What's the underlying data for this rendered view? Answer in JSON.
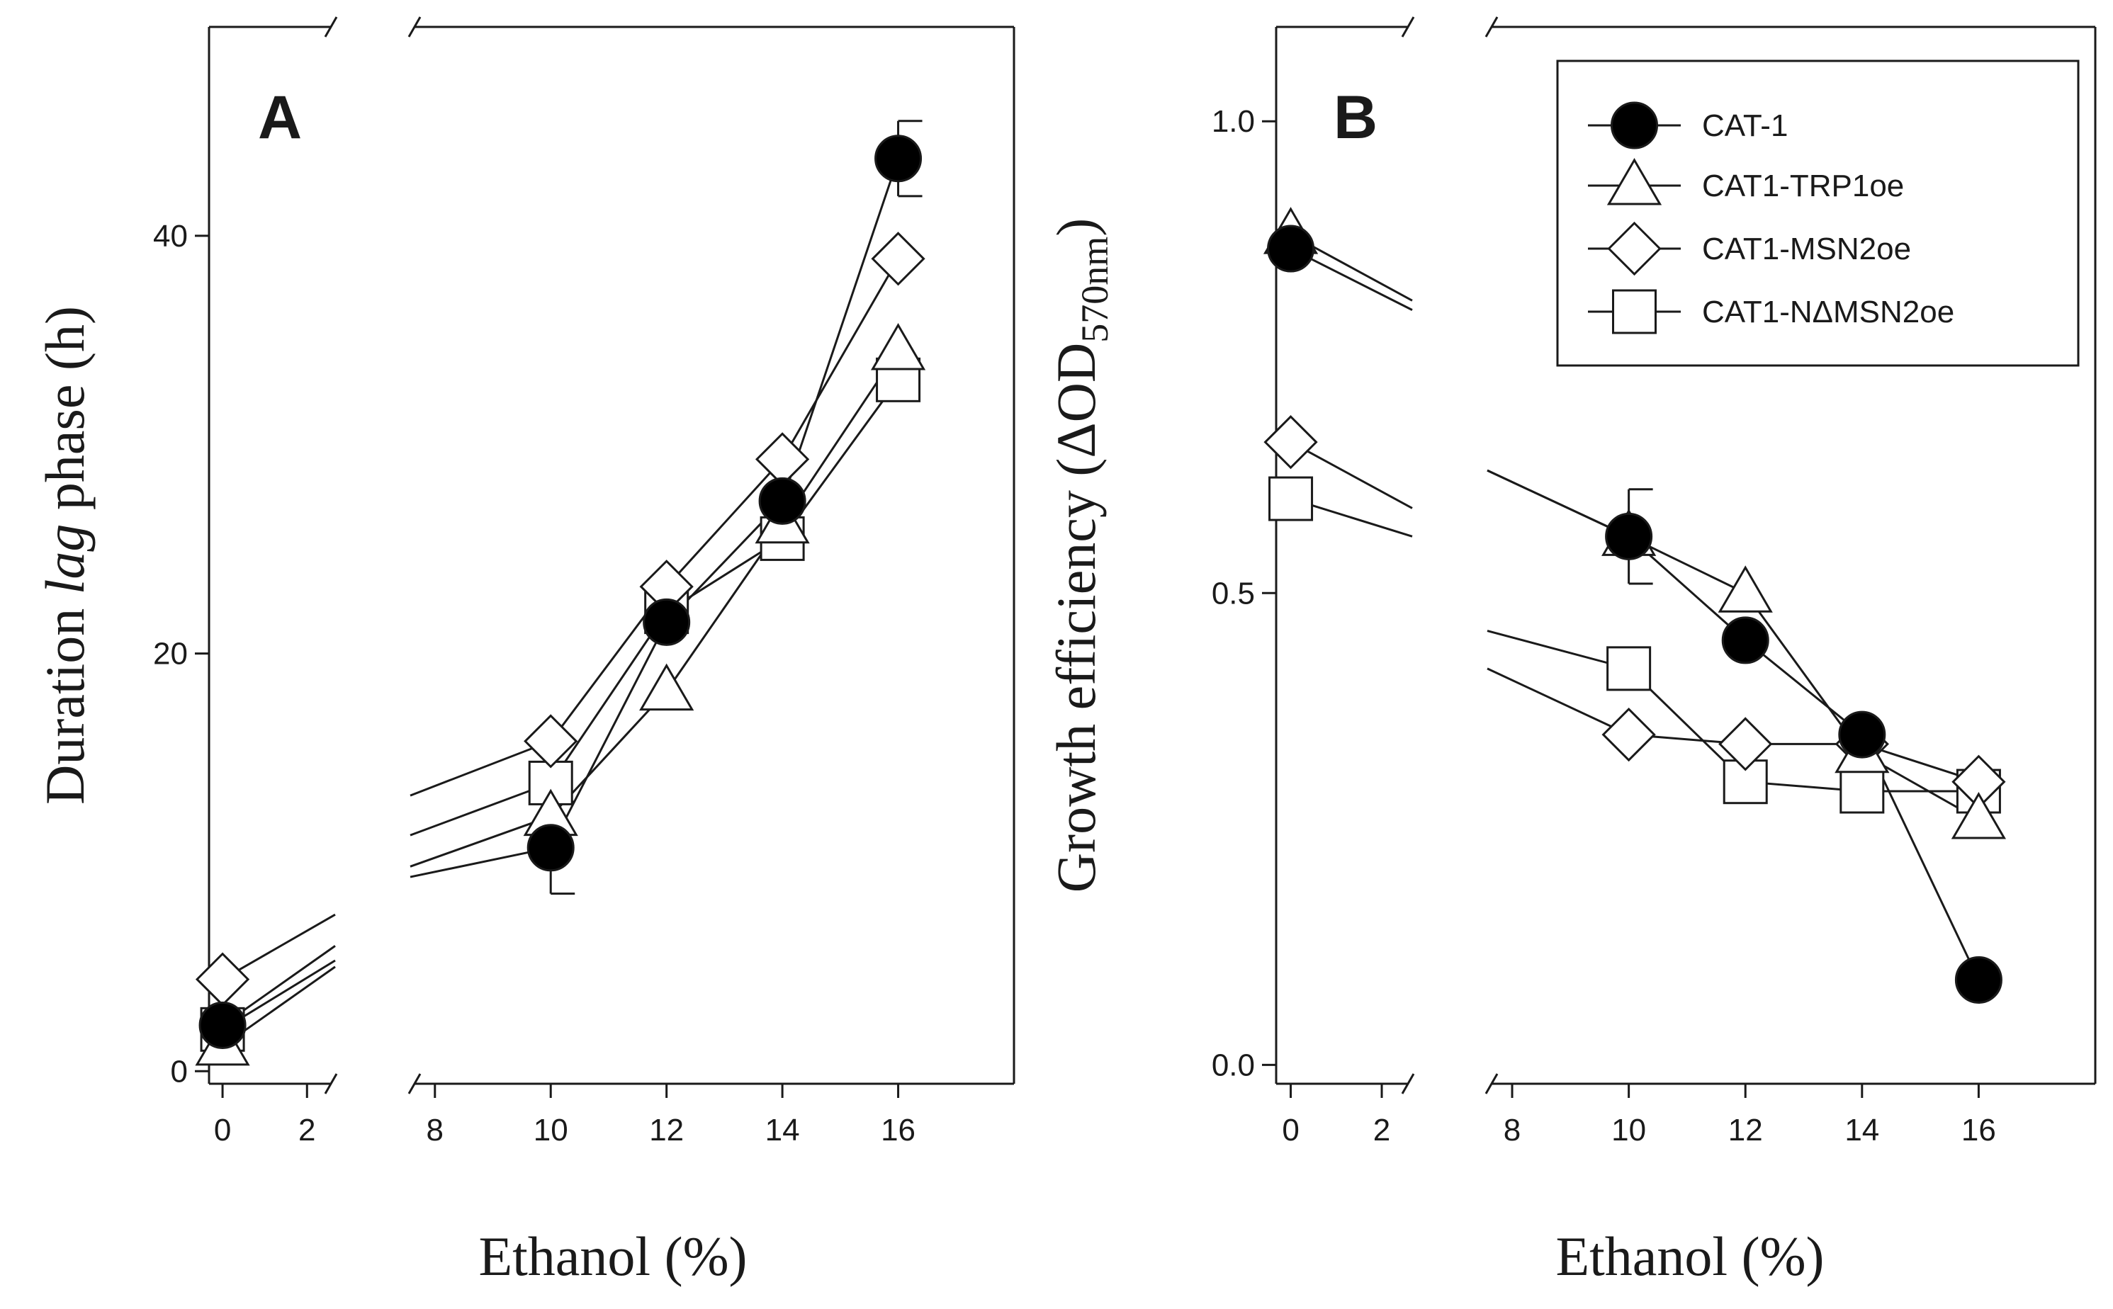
{
  "chart_data": [
    {
      "type": "line",
      "panel_label": "A",
      "title": "",
      "xlabel": "Ethanol (%)",
      "ylabel": {
        "prefix": "Duration ",
        "italic": "lag",
        "suffix": " phase (h)"
      },
      "xlim": [
        0,
        18
      ],
      "x_break": [
        2.3,
        7.6
      ],
      "ylim": [
        -0.6,
        50
      ],
      "xticks": [
        {
          "v": 0,
          "label": "0"
        },
        {
          "v": 2,
          "label": "2"
        },
        {
          "v": 8,
          "label": "8"
        },
        {
          "v": 10,
          "label": "10"
        },
        {
          "v": 12,
          "label": "12"
        },
        {
          "v": 14,
          "label": "14"
        },
        {
          "v": 16,
          "label": "16"
        }
      ],
      "yticks": [
        {
          "v": 0,
          "label": "0"
        },
        {
          "v": 20,
          "label": "20"
        },
        {
          "v": 40,
          "label": "40"
        }
      ],
      "series": [
        {
          "name": "CAT-1",
          "marker": "circle",
          "x": [
            0,
            10,
            12,
            14,
            16
          ],
          "y": [
            2.2,
            10.7,
            21.5,
            27.3,
            43.7
          ],
          "err": [
            null,
            2.2,
            null,
            null,
            1.8
          ],
          "lead_from": [
            6.0,
            9.3
          ]
        },
        {
          "name": "CAT1-TRP1oe",
          "marker": "triangle",
          "x": [
            0,
            10,
            12,
            14,
            16
          ],
          "y": [
            1.2,
            12.2,
            18.2,
            26.2,
            34.5
          ],
          "err": [
            null,
            null,
            null,
            null,
            null
          ],
          "lead_from": [
            5.0,
            9.8
          ]
        },
        {
          "name": "CAT1-MSN2oe",
          "marker": "diamond",
          "x": [
            0,
            10,
            12,
            14,
            16
          ],
          "y": [
            4.4,
            15.8,
            23.2,
            29.3,
            38.9
          ],
          "err": [
            null,
            null,
            null,
            null,
            null
          ],
          "lead_from": [
            7.5,
            13.2
          ]
        },
        {
          "name": "CAT1-NΔMSN2oe",
          "marker": "square",
          "x": [
            0,
            10,
            12,
            14,
            16
          ],
          "y": [
            2.0,
            13.8,
            22.0,
            25.5,
            33.1
          ],
          "err": [
            null,
            null,
            null,
            null,
            null
          ],
          "lead_from": [
            5.3,
            11.3
          ]
        }
      ],
      "legend": null
    },
    {
      "type": "line",
      "panel_label": "B",
      "title": "",
      "xlabel": "Ethanol (%)",
      "ylabel": {
        "prefix": "Growth efficiency (ΔOD",
        "subscript": "570nm",
        "suffix": ")"
      },
      "xlim": [
        0,
        18
      ],
      "x_break": [
        2.3,
        7.6
      ],
      "ylim": [
        -0.02,
        1.1
      ],
      "xticks": [
        {
          "v": 0,
          "label": "0"
        },
        {
          "v": 2,
          "label": "2"
        },
        {
          "v": 8,
          "label": "8"
        },
        {
          "v": 10,
          "label": "10"
        },
        {
          "v": 12,
          "label": "12"
        },
        {
          "v": 14,
          "label": "14"
        },
        {
          "v": 16,
          "label": "16"
        }
      ],
      "yticks": [
        {
          "v": 0,
          "label": "0.0"
        },
        {
          "v": 0.5,
          "label": "0.5"
        },
        {
          "v": 1.0,
          "label": "1.0"
        }
      ],
      "series": [
        {
          "name": "CAT-1",
          "marker": "circle",
          "x": [
            0,
            10,
            12,
            14,
            16
          ],
          "y": [
            0.865,
            0.56,
            0.45,
            0.35,
            0.09
          ],
          "err": [
            null,
            0.05,
            null,
            null,
            null
          ],
          "lead_from": [
            0.8,
            0.63
          ]
        },
        {
          "name": "CAT1-TRP1oe",
          "marker": "triangle",
          "x": [
            0,
            10,
            12,
            14,
            16
          ],
          "y": [
            0.88,
            0.56,
            0.5,
            0.33,
            0.26
          ],
          "err": [
            null,
            null,
            null,
            null,
            null
          ],
          "lead_from": [
            0.81,
            0.63
          ]
        },
        {
          "name": "CAT1-MSN2oe",
          "marker": "diamond",
          "x": [
            0,
            10,
            12,
            14,
            16
          ],
          "y": [
            0.66,
            0.35,
            0.34,
            0.34,
            0.3
          ],
          "err": [
            null,
            null,
            null,
            null,
            null
          ],
          "lead_from": [
            0.59,
            0.42
          ]
        },
        {
          "name": "CAT1-NΔMSN2oe",
          "marker": "square",
          "x": [
            0,
            10,
            12,
            14,
            16
          ],
          "y": [
            0.6,
            0.42,
            0.3,
            0.29,
            0.29
          ],
          "err": [
            null,
            null,
            null,
            null,
            null
          ],
          "lead_from": [
            0.56,
            0.46
          ]
        }
      ],
      "legend": {
        "position": "top-right",
        "entries": [
          "CAT-1",
          "CAT1-TRP1oe",
          "CAT1-MSN2oe",
          "CAT1-NΔMSN2oe"
        ]
      }
    }
  ]
}
